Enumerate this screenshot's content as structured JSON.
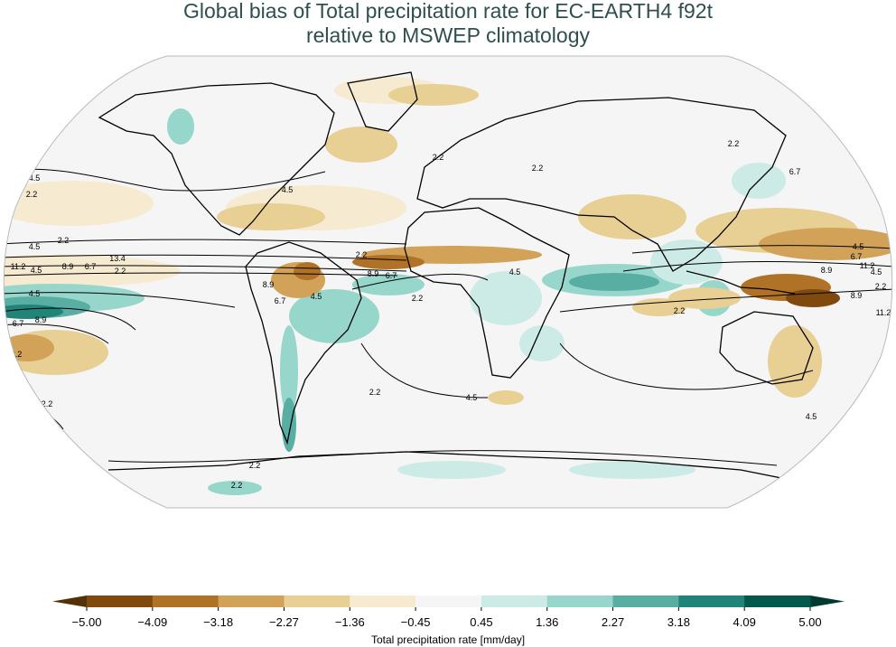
{
  "title_line1": "Global bias of Total precipitation rate for EC-EARTH4 f92t",
  "title_line2": "relative to MSWEP climatology",
  "map": {
    "projection": "Robinson",
    "background_color": "#f4f5f4",
    "contour_labels": [
      "4.5",
      "2.2",
      "4.5",
      "11.2",
      "4.5",
      "8.9",
      "6.7",
      "13.4",
      "2.2",
      "4.5",
      "6.7",
      "8.9",
      "2.2",
      "2.2",
      "2.2",
      "4.5",
      "2.2",
      "2.2",
      "8.9",
      "6.7",
      "8.9",
      "4.5",
      "6.7",
      "2.2",
      "4.5",
      "2.2",
      "2.2",
      "6.7",
      "2.2",
      "4.5",
      "6.7",
      "8.9",
      "11.2",
      "4.5",
      "2.2",
      "11.2",
      "8.9",
      "4.5",
      "2.2",
      "4.5",
      "2.2",
      "2.2"
    ]
  },
  "colorbar": {
    "label": "Total precipitation rate [mm/day]",
    "ticks": [
      "−5.00",
      "−4.09",
      "−3.18",
      "−2.27",
      "−1.36",
      "−0.45",
      "0.45",
      "1.36",
      "2.27",
      "3.18",
      "4.09",
      "5.00"
    ],
    "colors": [
      "#804a0f",
      "#b07226",
      "#d1a257",
      "#e8cf94",
      "#f6ead0",
      "#f4f5f4",
      "#cdebe6",
      "#97d6cb",
      "#58aea2",
      "#208479",
      "#01594e"
    ],
    "extend_low_color": "#553205",
    "extend_high_color": "#013a30"
  }
}
